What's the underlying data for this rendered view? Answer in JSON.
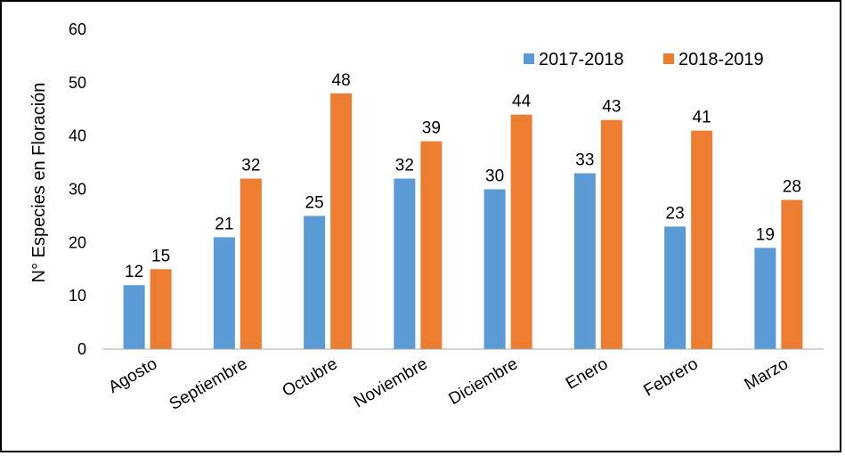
{
  "chart_data": {
    "type": "bar",
    "title": "",
    "xlabel": "",
    "ylabel": "N° Especies en Floración",
    "ylim": [
      0,
      60
    ],
    "yticks": [
      "0",
      "10",
      "20",
      "30",
      "40",
      "50",
      "60"
    ],
    "grid": false,
    "legend_position": "top-right",
    "categories": [
      "Agosto",
      "Septiembre",
      "Octubre",
      "Noviembre",
      "Diciembre",
      "Enero",
      "Febrero",
      "Marzo"
    ],
    "series": [
      {
        "name": "2017-2018",
        "color": "#5b9bd5",
        "values": [
          12,
          21,
          25,
          32,
          30,
          33,
          23,
          19
        ]
      },
      {
        "name": "2018-2019",
        "color": "#ed7d31",
        "values": [
          15,
          32,
          48,
          39,
          44,
          43,
          41,
          28
        ]
      }
    ]
  }
}
